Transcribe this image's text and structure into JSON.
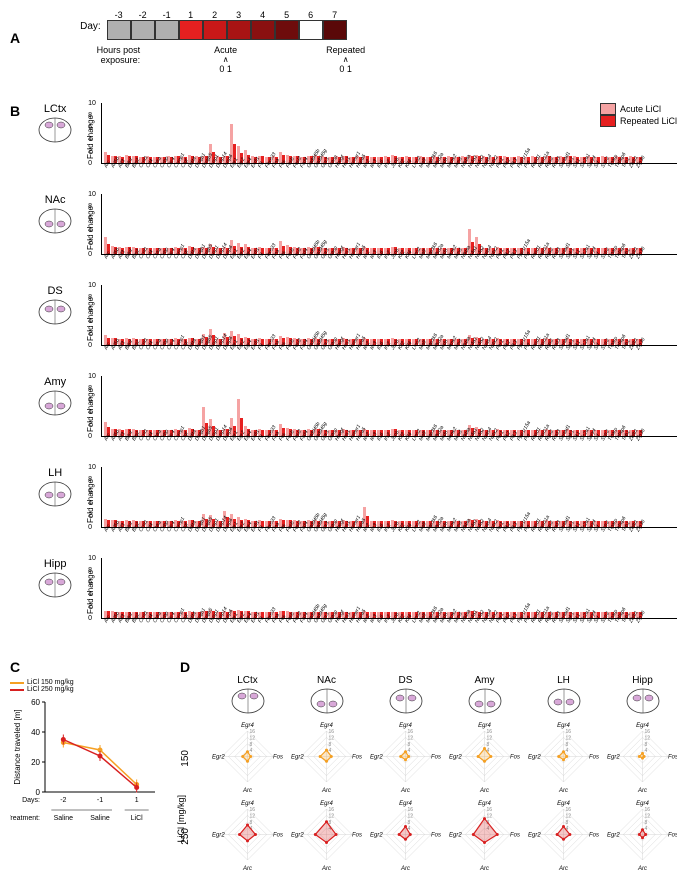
{
  "panelA": {
    "label": "A",
    "day_label": "Day:",
    "days": [
      "-3",
      "-2",
      "-1",
      "1",
      "2",
      "3",
      "4",
      "5",
      "6",
      "7"
    ],
    "day_colors": [
      "#b0b0b0",
      "#b0b0b0",
      "#b0b0b0",
      "#e62020",
      "#c81818",
      "#a81414",
      "#8a1010",
      "#6e0c0c",
      "#ffffff",
      "#5a0808"
    ],
    "hours_label": "Hours post\nexposure:",
    "acute_label": "Acute",
    "repeated_label": "Repeated",
    "timepoint": "0 1"
  },
  "panelB": {
    "label": "B",
    "ylabel": "Fold change",
    "legend": [
      {
        "label": "Acute LiCl",
        "color": "#f5a3a3"
      },
      {
        "label": "Repeated LiCl",
        "color": "#e62020"
      }
    ],
    "ymax": 10,
    "yticks": [
      0,
      2,
      4,
      6,
      8,
      10
    ],
    "genes": [
      "Arc",
      "Arl5b",
      "Atf3",
      "Bdnf",
      "Btg2",
      "Ccnl1",
      "Cd4",
      "Chka",
      "Cirbp",
      "Clic4",
      "Csrnp1",
      "Ctgf",
      "Ddit4",
      "Dnajb1",
      "Dnajb5",
      "Dusp1",
      "Dusp14",
      "Dusp6",
      "Egr1",
      "Egr2",
      "Egr4",
      "Errfi1",
      "F3",
      "Fbxo33",
      "Flna",
      "Fos",
      "Fosb",
      "Fosl2",
      "Fzd4",
      "Gadd45b",
      "Gadd45g",
      "Gpr3",
      "Grasp",
      "Hbegf",
      "Hes1",
      "Homer1",
      "Hspa5",
      "Ier2",
      "Ier3",
      "Il16",
      "Irs2",
      "Junb",
      "Klf2",
      "Klf4",
      "Lmo2",
      "Maff",
      "Map3k6",
      "Mfsd2a",
      "Midn",
      "Mknk2",
      "Mmd",
      "Nfkbia",
      "Nr4a1",
      "Nr4a2",
      "Npas4",
      "Nptx2",
      "Per1",
      "Plk2",
      "Plk3",
      "Ppp1r15a",
      "Pvr",
      "Rasd1",
      "Rasl11a",
      "Rgs2",
      "Rnd3",
      "Sertad1",
      "Sgk1",
      "Sik1",
      "Slc2a1",
      "Spry4",
      "Srf",
      "Sstr2",
      "Tiparp",
      "Tnfaip6",
      "Trib1",
      "Zbtb1",
      "Zfp36"
    ],
    "regions": [
      {
        "name": "LCtx",
        "acute": [
          1.8,
          1.2,
          1.1,
          1.3,
          1.2,
          1.0,
          1.1,
          1.0,
          1.0,
          1.1,
          1.2,
          1.0,
          1.4,
          1.1,
          1.2,
          3.2,
          1.1,
          1.2,
          6.5,
          2.8,
          2.1,
          1.1,
          1.2,
          1.0,
          1.1,
          1.8,
          1.4,
          1.2,
          1.0,
          1.2,
          1.3,
          1.1,
          1.0,
          1.1,
          1.2,
          1.0,
          1.1,
          1.2,
          1.0,
          1.0,
          1.1,
          1.3,
          1.0,
          1.1,
          1.0,
          1.1,
          1.0,
          1.1,
          1.0,
          1.1,
          1.0,
          1.1,
          1.4,
          1.3,
          1.1,
          1.0,
          1.2,
          1.1,
          1.0,
          1.1,
          1.0,
          1.1,
          1.0,
          1.2,
          1.0,
          1.1,
          1.2,
          1.1,
          1.0,
          1.1,
          1.0,
          1.1,
          1.0,
          1.1,
          1.0,
          1.1,
          1.0
        ],
        "repeated": [
          1.3,
          1.1,
          1.0,
          1.1,
          1.1,
          1.0,
          1.0,
          1.0,
          1.0,
          1.0,
          1.1,
          1.0,
          1.2,
          1.0,
          1.1,
          1.8,
          1.0,
          1.1,
          3.2,
          1.6,
          1.4,
          1.0,
          1.1,
          1.0,
          1.0,
          1.3,
          1.2,
          1.1,
          1.0,
          1.1,
          1.1,
          1.0,
          1.0,
          1.0,
          1.1,
          1.0,
          1.0,
          1.1,
          1.0,
          1.0,
          1.0,
          1.1,
          1.0,
          1.0,
          1.0,
          1.0,
          1.0,
          1.0,
          1.0,
          1.0,
          1.0,
          1.0,
          1.2,
          1.1,
          1.0,
          1.0,
          1.1,
          1.0,
          1.0,
          1.0,
          1.0,
          1.0,
          1.0,
          1.1,
          1.0,
          1.0,
          1.1,
          1.0,
          1.0,
          1.0,
          1.0,
          1.0,
          1.0,
          1.0,
          1.0,
          1.0,
          1.0
        ]
      },
      {
        "name": "NAc",
        "acute": [
          2.8,
          1.3,
          1.1,
          1.2,
          1.1,
          1.0,
          1.0,
          1.0,
          1.0,
          1.0,
          1.1,
          1.0,
          1.3,
          1.0,
          1.1,
          1.6,
          1.0,
          1.1,
          2.4,
          1.8,
          1.6,
          1.0,
          1.1,
          1.0,
          1.0,
          2.2,
          1.5,
          1.1,
          1.0,
          1.1,
          1.2,
          1.0,
          1.0,
          1.0,
          1.1,
          1.0,
          1.0,
          1.1,
          1.0,
          1.0,
          1.0,
          1.2,
          1.0,
          1.0,
          1.0,
          1.0,
          1.0,
          1.0,
          1.0,
          1.0,
          1.0,
          1.0,
          4.2,
          2.8,
          1.0,
          1.0,
          1.1,
          1.0,
          1.0,
          1.0,
          1.0,
          1.0,
          1.0,
          1.1,
          1.0,
          1.0,
          1.1,
          1.0,
          1.0,
          1.0,
          1.0,
          1.0,
          1.0,
          1.0,
          1.0,
          1.0,
          1.0
        ],
        "repeated": [
          1.6,
          1.1,
          1.0,
          1.1,
          1.0,
          1.0,
          1.0,
          1.0,
          1.0,
          1.0,
          1.0,
          1.0,
          1.1,
          1.0,
          1.0,
          1.2,
          1.0,
          1.0,
          1.4,
          1.2,
          1.1,
          1.0,
          1.0,
          1.0,
          1.0,
          1.4,
          1.2,
          1.0,
          1.0,
          1.0,
          1.1,
          1.0,
          1.0,
          1.0,
          1.0,
          1.0,
          1.0,
          1.0,
          1.0,
          1.0,
          1.0,
          1.1,
          1.0,
          1.0,
          1.0,
          1.0,
          1.0,
          1.0,
          1.0,
          1.0,
          1.0,
          1.0,
          2.0,
          1.6,
          1.0,
          1.0,
          1.0,
          1.0,
          1.0,
          1.0,
          1.0,
          1.0,
          1.0,
          1.0,
          1.0,
          1.0,
          1.0,
          1.0,
          1.0,
          1.0,
          1.0,
          1.0,
          1.0,
          1.0,
          1.0,
          1.0,
          1.0
        ]
      },
      {
        "name": "DS",
        "acute": [
          1.6,
          1.2,
          1.0,
          1.1,
          1.1,
          1.0,
          1.0,
          1.0,
          1.0,
          1.0,
          1.1,
          1.0,
          1.2,
          1.0,
          1.8,
          2.6,
          1.0,
          2.0,
          2.4,
          1.8,
          1.4,
          1.0,
          1.1,
          1.0,
          1.0,
          1.5,
          1.3,
          1.1,
          1.0,
          1.1,
          1.1,
          1.0,
          1.0,
          1.0,
          1.1,
          1.0,
          1.0,
          1.1,
          1.0,
          1.0,
          1.0,
          1.1,
          1.0,
          1.0,
          1.0,
          1.0,
          1.0,
          1.0,
          1.0,
          1.0,
          1.0,
          1.0,
          1.6,
          1.4,
          1.0,
          1.0,
          1.1,
          1.0,
          1.0,
          1.0,
          1.0,
          1.0,
          1.0,
          1.1,
          1.0,
          1.0,
          1.1,
          1.0,
          1.0,
          1.0,
          1.0,
          1.0,
          1.0,
          1.0,
          1.0,
          1.0,
          1.0
        ],
        "repeated": [
          1.2,
          1.1,
          1.0,
          1.0,
          1.0,
          1.0,
          1.0,
          1.0,
          1.0,
          1.0,
          1.0,
          1.0,
          1.1,
          1.0,
          1.3,
          1.6,
          1.0,
          1.4,
          1.5,
          1.2,
          1.1,
          1.0,
          1.0,
          1.0,
          1.0,
          1.2,
          1.1,
          1.0,
          1.0,
          1.0,
          1.0,
          1.0,
          1.0,
          1.0,
          1.0,
          1.0,
          1.0,
          1.0,
          1.0,
          1.0,
          1.0,
          1.0,
          1.0,
          1.0,
          1.0,
          1.0,
          1.0,
          1.0,
          1.0,
          1.0,
          1.0,
          1.0,
          1.2,
          1.1,
          1.0,
          1.0,
          1.0,
          1.0,
          1.0,
          1.0,
          1.0,
          1.0,
          1.0,
          1.0,
          1.0,
          1.0,
          1.0,
          1.0,
          1.0,
          1.0,
          1.0,
          1.0,
          1.0,
          1.0,
          1.0,
          1.0,
          1.0
        ]
      },
      {
        "name": "Amy",
        "acute": [
          2.4,
          1.2,
          1.1,
          1.2,
          1.1,
          1.0,
          1.0,
          1.0,
          1.0,
          1.0,
          1.1,
          1.0,
          1.3,
          1.0,
          4.8,
          2.8,
          1.0,
          1.2,
          3.0,
          6.2,
          1.6,
          1.0,
          1.1,
          1.0,
          1.0,
          2.0,
          1.4,
          1.1,
          1.0,
          1.1,
          1.2,
          1.0,
          1.0,
          1.0,
          1.1,
          1.0,
          1.0,
          1.1,
          1.0,
          1.0,
          1.0,
          1.2,
          1.0,
          1.0,
          1.0,
          1.0,
          1.0,
          1.0,
          1.0,
          1.0,
          1.0,
          1.0,
          1.8,
          1.5,
          1.0,
          1.0,
          1.1,
          1.0,
          1.0,
          1.0,
          1.0,
          1.0,
          1.0,
          1.1,
          1.0,
          1.0,
          1.1,
          1.0,
          1.0,
          1.0,
          1.0,
          1.0,
          1.0,
          1.0,
          1.0,
          1.0,
          1.0
        ],
        "repeated": [
          1.5,
          1.1,
          1.0,
          1.1,
          1.0,
          1.0,
          1.0,
          1.0,
          1.0,
          1.0,
          1.0,
          1.0,
          1.1,
          1.0,
          2.2,
          1.6,
          1.0,
          1.1,
          1.6,
          3.0,
          1.2,
          1.0,
          1.0,
          1.0,
          1.0,
          1.3,
          1.1,
          1.0,
          1.0,
          1.0,
          1.1,
          1.0,
          1.0,
          1.0,
          1.0,
          1.0,
          1.0,
          1.0,
          1.0,
          1.0,
          1.0,
          1.1,
          1.0,
          1.0,
          1.0,
          1.0,
          1.0,
          1.0,
          1.0,
          1.0,
          1.0,
          1.0,
          1.3,
          1.2,
          1.0,
          1.0,
          1.0,
          1.0,
          1.0,
          1.0,
          1.0,
          1.0,
          1.0,
          1.0,
          1.0,
          1.0,
          1.0,
          1.0,
          1.0,
          1.0,
          1.0,
          1.0,
          1.0,
          1.0,
          1.0,
          1.0,
          1.0
        ]
      },
      {
        "name": "LH",
        "acute": [
          1.4,
          1.2,
          1.0,
          1.1,
          1.1,
          1.0,
          1.0,
          1.0,
          1.0,
          1.0,
          1.1,
          1.0,
          1.2,
          1.0,
          2.2,
          2.0,
          1.0,
          2.6,
          2.2,
          1.6,
          1.4,
          1.0,
          1.1,
          1.0,
          1.0,
          1.4,
          1.2,
          1.1,
          1.0,
          1.1,
          1.1,
          1.0,
          1.0,
          1.0,
          1.1,
          1.0,
          1.0,
          3.4,
          1.0,
          1.0,
          1.0,
          1.1,
          1.0,
          1.0,
          1.0,
          1.0,
          1.0,
          1.0,
          1.0,
          1.0,
          1.0,
          1.0,
          1.4,
          1.3,
          1.0,
          1.0,
          1.1,
          1.0,
          1.0,
          1.0,
          1.0,
          1.0,
          1.0,
          1.1,
          1.0,
          1.0,
          1.1,
          1.0,
          1.0,
          1.0,
          1.0,
          1.0,
          1.0,
          1.0,
          1.0,
          1.0,
          1.0
        ],
        "repeated": [
          1.2,
          1.1,
          1.0,
          1.0,
          1.0,
          1.0,
          1.0,
          1.0,
          1.0,
          1.0,
          1.0,
          1.0,
          1.1,
          1.0,
          1.4,
          1.3,
          1.0,
          1.6,
          1.4,
          1.2,
          1.1,
          1.0,
          1.0,
          1.0,
          1.0,
          1.2,
          1.1,
          1.0,
          1.0,
          1.0,
          1.0,
          1.0,
          1.0,
          1.0,
          1.0,
          1.0,
          1.0,
          1.8,
          1.0,
          1.0,
          1.0,
          1.0,
          1.0,
          1.0,
          1.0,
          1.0,
          1.0,
          1.0,
          1.0,
          1.0,
          1.0,
          1.0,
          1.2,
          1.1,
          1.0,
          1.0,
          1.0,
          1.0,
          1.0,
          1.0,
          1.0,
          1.0,
          1.0,
          1.0,
          1.0,
          1.0,
          1.0,
          1.0,
          1.0,
          1.0,
          1.0,
          1.0,
          1.0,
          1.0,
          1.0,
          1.0,
          1.0
        ]
      },
      {
        "name": "Hipp",
        "acute": [
          1.2,
          1.1,
          1.0,
          1.0,
          1.0,
          1.0,
          1.0,
          1.0,
          1.0,
          1.0,
          1.0,
          1.0,
          1.1,
          1.0,
          1.2,
          1.3,
          1.0,
          1.1,
          1.4,
          1.3,
          1.2,
          1.0,
          1.0,
          1.0,
          1.0,
          1.2,
          1.1,
          1.0,
          1.0,
          1.0,
          1.0,
          1.0,
          1.0,
          1.0,
          1.0,
          1.0,
          1.0,
          1.1,
          1.0,
          1.0,
          1.0,
          1.0,
          1.0,
          1.0,
          1.0,
          1.0,
          1.0,
          1.0,
          1.0,
          1.0,
          1.0,
          1.0,
          1.2,
          1.1,
          1.0,
          1.0,
          1.0,
          1.0,
          1.0,
          1.0,
          1.0,
          1.0,
          1.0,
          1.0,
          1.0,
          1.0,
          1.0,
          1.0,
          1.0,
          1.0,
          1.0,
          1.0,
          1.0,
          1.0,
          1.0,
          1.0,
          1.0
        ],
        "repeated": [
          1.1,
          1.0,
          1.0,
          1.0,
          1.0,
          1.0,
          1.0,
          1.0,
          1.0,
          1.0,
          1.0,
          1.0,
          1.0,
          1.0,
          1.1,
          1.1,
          1.0,
          1.0,
          1.2,
          1.1,
          1.1,
          1.0,
          1.0,
          1.0,
          1.0,
          1.1,
          1.0,
          1.0,
          1.0,
          1.0,
          1.0,
          1.0,
          1.0,
          1.0,
          1.0,
          1.0,
          1.0,
          1.0,
          1.0,
          1.0,
          1.0,
          1.0,
          1.0,
          1.0,
          1.0,
          1.0,
          1.0,
          1.0,
          1.0,
          1.0,
          1.0,
          1.0,
          1.1,
          1.0,
          1.0,
          1.0,
          1.0,
          1.0,
          1.0,
          1.0,
          1.0,
          1.0,
          1.0,
          1.0,
          1.0,
          1.0,
          1.0,
          1.0,
          1.0,
          1.0,
          1.0,
          1.0,
          1.0,
          1.0,
          1.0,
          1.0,
          1.0
        ]
      }
    ]
  },
  "panelC": {
    "label": "C",
    "ylabel": "Distance traveled [m]",
    "ylim": [
      0,
      60
    ],
    "yticks": [
      0,
      20,
      40,
      60
    ],
    "xlabel_top": "Days:",
    "xlabel_bot": "Treatment:",
    "xticks": [
      "-2",
      "-1",
      "1"
    ],
    "xticklabels": [
      "Saline",
      "Saline",
      "LiCl"
    ],
    "legend": [
      {
        "label": "LiCl 150 mg/kg",
        "color": "#f5a023"
      },
      {
        "label": "LiCl 250 mg/kg",
        "color": "#d82020"
      }
    ],
    "series": [
      {
        "color": "#f5a023",
        "y": [
          33,
          28,
          5
        ]
      },
      {
        "color": "#d82020",
        "y": [
          35,
          24,
          3
        ]
      }
    ]
  },
  "panelD": {
    "label": "D",
    "row_label_title": "LiCl [mg/kg]",
    "axes": [
      "Egr4",
      "Fos",
      "Arc",
      "Egr2"
    ],
    "rticks": [
      4,
      8,
      12,
      16
    ],
    "regions": [
      "LCtx",
      "NAc",
      "DS",
      "Amy",
      "LH",
      "Hipp"
    ],
    "rows": [
      {
        "dose": "150",
        "color": "#f5a023",
        "data": [
          [
            3,
            2,
            3,
            3
          ],
          [
            4,
            3,
            3,
            4
          ],
          [
            3,
            2,
            2,
            3
          ],
          [
            5,
            4,
            3,
            4
          ],
          [
            3,
            2,
            2,
            3
          ],
          [
            2,
            1,
            1,
            2
          ]
        ]
      },
      {
        "dose": "250",
        "color": "#d82020",
        "data": [
          [
            6,
            5,
            4,
            5
          ],
          [
            8,
            6,
            5,
            7
          ],
          [
            5,
            3,
            3,
            4
          ],
          [
            10,
            8,
            5,
            7
          ],
          [
            5,
            4,
            3,
            4
          ],
          [
            3,
            2,
            2,
            2
          ]
        ]
      }
    ]
  },
  "colors": {
    "acute": "#f5a3a3",
    "repeated": "#e62020",
    "brain_fill": "#d8a8d8",
    "brain_stroke": "#333"
  }
}
